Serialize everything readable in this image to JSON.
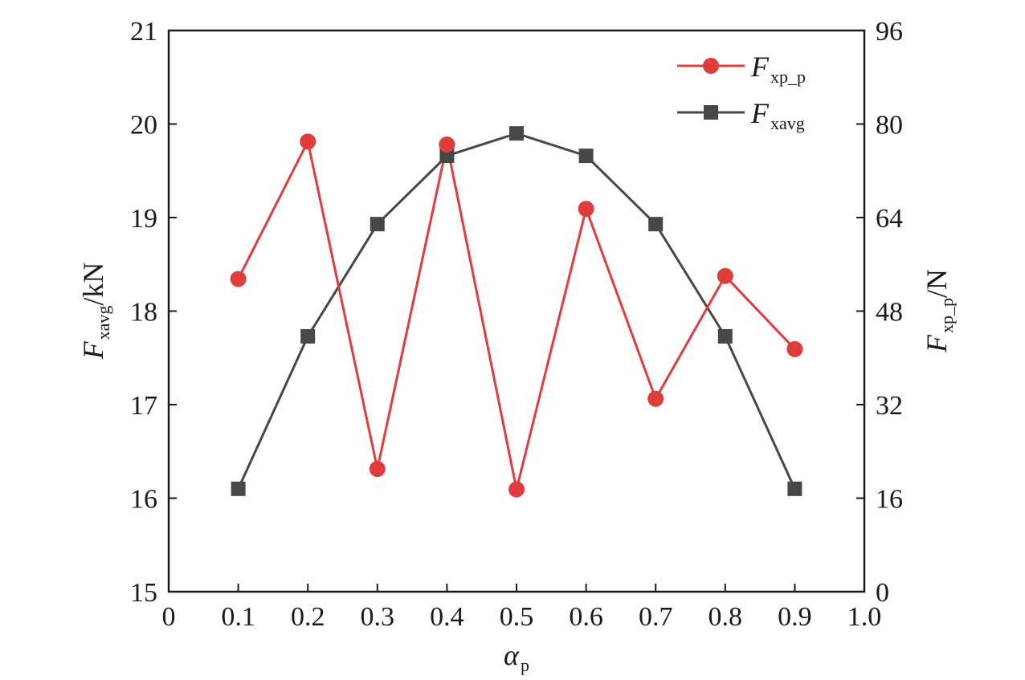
{
  "chart_data": {
    "type": "line",
    "x": [
      0.1,
      0.2,
      0.3,
      0.4,
      0.5,
      0.6,
      0.7,
      0.8,
      0.9
    ],
    "xlim": [
      0,
      1.0
    ],
    "xticks": [
      "0",
      "0.1",
      "0.2",
      "0.3",
      "0.4",
      "0.5",
      "0.6",
      "0.7",
      "0.8",
      "0.9",
      "1.0"
    ],
    "xlabel": {
      "main": "α",
      "sub": "p"
    },
    "ylabel_left": {
      "main": "F",
      "sub": "xavg",
      "unit": "/kN"
    },
    "ylim_left": [
      15,
      21
    ],
    "yticks_left": [
      "15",
      "16",
      "17",
      "18",
      "19",
      "20",
      "21"
    ],
    "ylabel_right": {
      "main": "F",
      "sub": "xp_p",
      "unit": "/N"
    },
    "ylim_right": [
      0,
      96
    ],
    "yticks_right": [
      "0",
      "16",
      "32",
      "48",
      "64",
      "80",
      "96"
    ],
    "legend_position": "top-right",
    "grid": false,
    "series": [
      {
        "name_main": "F",
        "name_sub": "xp_p",
        "axis": "right",
        "marker": "circle",
        "color": "#e03c3c",
        "values": [
          53.5,
          77,
          21,
          76.5,
          17.5,
          65.5,
          33,
          54,
          41.5
        ]
      },
      {
        "name_main": "F",
        "name_sub": "xavg",
        "axis": "left",
        "marker": "square",
        "color": "#474747",
        "values": [
          16.1,
          17.73,
          18.93,
          19.66,
          19.9,
          19.66,
          18.93,
          17.73,
          16.1
        ]
      }
    ]
  }
}
